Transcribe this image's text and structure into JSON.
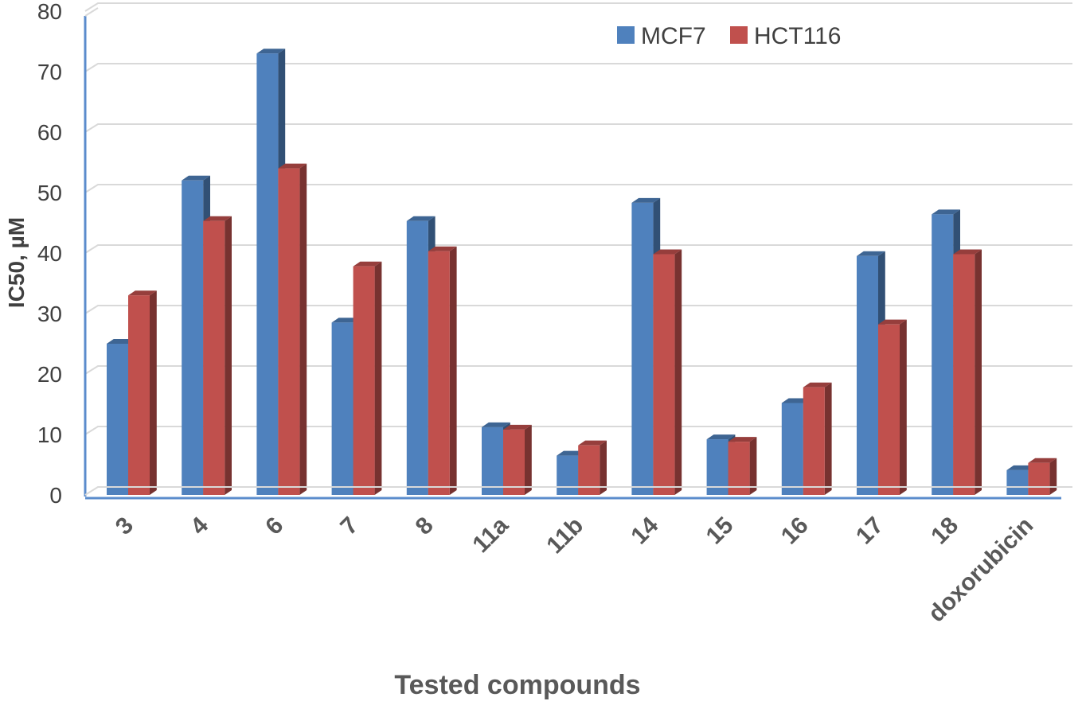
{
  "chart_data": {
    "type": "bar",
    "title": "",
    "xlabel": "Tested compounds",
    "ylabel": "IC50, µM",
    "ylim": [
      0,
      80
    ],
    "yticks": [
      0,
      10,
      20,
      30,
      40,
      50,
      60,
      70,
      80
    ],
    "grid": true,
    "legend_position": "top-right",
    "categories": [
      "3",
      "4",
      "6",
      "7",
      "8",
      "11a",
      "11b",
      "14",
      "15",
      "16",
      "17",
      "18",
      "doxorubicin"
    ],
    "series": [
      {
        "name": "MCF7",
        "color": "#4f81bd",
        "values": [
          25,
          52,
          73,
          28.5,
          45.3,
          11.2,
          6.5,
          48.3,
          9.2,
          15.2,
          39.5,
          46.4,
          4.1
        ]
      },
      {
        "name": "HCT116",
        "color": "#c0504d",
        "values": [
          33,
          45.3,
          54,
          37.8,
          40.3,
          10.8,
          8.2,
          39.8,
          8.8,
          17.8,
          28.2,
          39.8,
          5.3
        ]
      }
    ]
  }
}
